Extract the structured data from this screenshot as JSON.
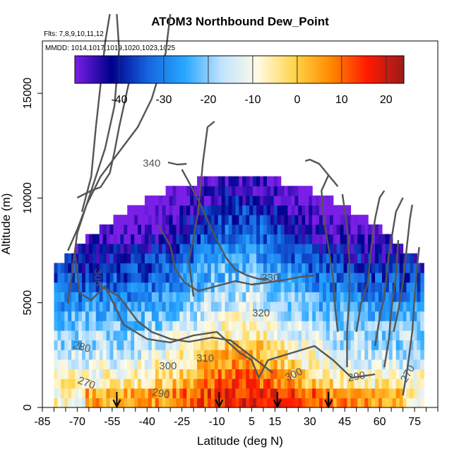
{
  "chart_data": {
    "type": "heatmap",
    "title": "ATOM3 Northbound Dew_Point",
    "subtitle_flights": "Flts: 7,8,9,10,11,12",
    "subtitle_dates": "MMDD: 1014,1017,1019,1020,1023,1025",
    "xlabel": "Latitude (deg N)",
    "ylabel": "Altitude (m)",
    "xlim": [
      -85,
      85
    ],
    "ylim": [
      0,
      17500
    ],
    "x_ticks": [
      -85,
      -70,
      -55,
      -40,
      -25,
      -10,
      5,
      15,
      30,
      45,
      60,
      75
    ],
    "y_ticks": [
      0,
      5000,
      10000,
      15000
    ],
    "colorbar": {
      "range": [
        -50,
        24
      ],
      "ticks": [
        -40,
        -30,
        -20,
        -10,
        0,
        10,
        20
      ],
      "colors": [
        "#7a1fe6",
        "#00008b",
        "#1565e0",
        "#27a7ff",
        "#bfe3ff",
        "#fffbe6",
        "#ffd54a",
        "#ff8a00",
        "#ff1a00",
        "#9b1b1b"
      ]
    },
    "contour_labels": [
      "340",
      "330",
      "320",
      "310",
      "300",
      "300",
      "290",
      "290",
      "280",
      "270",
      "270",
      "305"
    ],
    "arrows_latitude": [
      -53,
      -9,
      16,
      38
    ]
  }
}
